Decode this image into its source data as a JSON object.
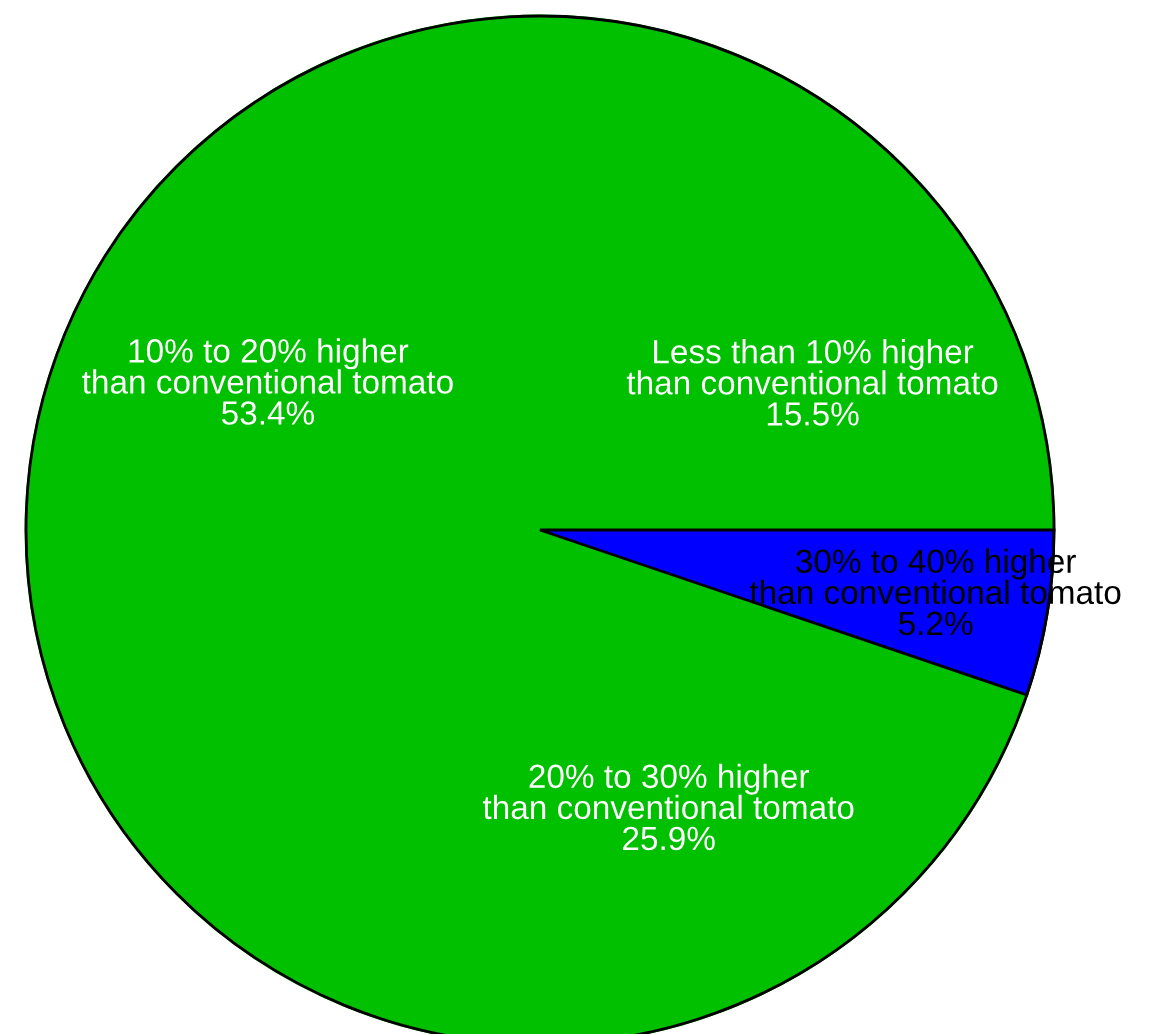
{
  "chart_data": {
    "type": "pie",
    "categories": [
      "Less than 10% higher\nthan conventional tomato",
      "10% to 20% higher\nthan conventional tomato",
      "20% to 30% higher\nthan conventional tomato",
      "30% to 40% higher\nthan conventional tomato"
    ],
    "values": [
      15.5,
      53.4,
      25.9,
      5.2
    ],
    "colors": [
      "#00c000",
      "#00c000",
      "#00c000",
      "#0000ff"
    ],
    "value_labels": [
      "15.5%",
      "53.4%",
      "25.9%",
      "5.2%"
    ]
  }
}
